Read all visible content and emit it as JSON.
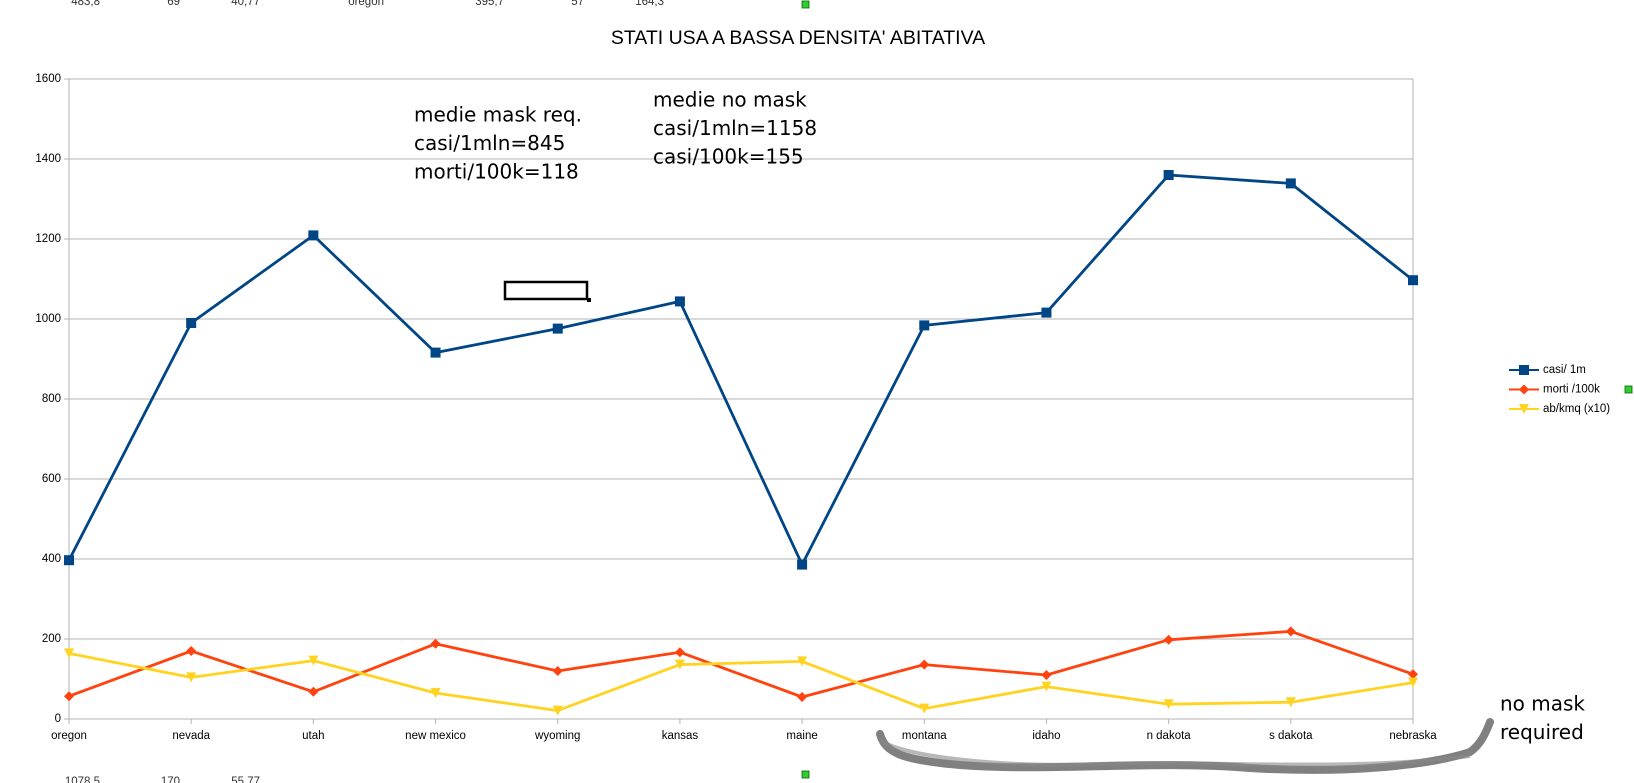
{
  "chart_data": {
    "type": "line",
    "title": "STATI USA A BASSA DENSITA' ABITATIVA",
    "categories": [
      "oregon",
      "nevada",
      "utah",
      "new mexico",
      "wyoming",
      "kansas",
      "maine",
      "montana",
      "idaho",
      "n dakota",
      "s dakota",
      "nebraska"
    ],
    "series": [
      {
        "name": "casi/ 1m",
        "color": "#004586",
        "marker": "square",
        "values": [
          397,
          990,
          1209,
          916,
          976,
          1044,
          386,
          984,
          1016,
          1360,
          1339,
          1097
        ]
      },
      {
        "name": "morti /100k",
        "color": "#ff420e",
        "marker": "diamond",
        "values": [
          57,
          170,
          68,
          188,
          120,
          167,
          55,
          136,
          110,
          198,
          219,
          112
        ]
      },
      {
        "name": "ab/kmq (x10)",
        "color": "#ffd320",
        "marker": "triangle-down",
        "values": [
          164,
          104,
          146,
          65,
          21,
          136,
          144,
          26,
          81,
          37,
          42,
          91
        ]
      }
    ],
    "ylim": [
      0,
      1600
    ],
    "yticks": [
      0,
      200,
      400,
      600,
      800,
      1000,
      1200,
      1400,
      1600
    ],
    "grid": true,
    "legend": "right",
    "annotations": [
      [
        "medie mask req.",
        "casi/1mln=845",
        "morti/100k=118"
      ],
      [
        "medie no mask",
        "casi/1mln=1158",
        "casi/100k=155"
      ],
      [
        "no mask",
        "required"
      ]
    ]
  },
  "sheet_fragments": {
    "top": [
      "483,8",
      "69",
      "40,77",
      "oregon",
      "395,7",
      "57",
      "164,3"
    ],
    "bottom": [
      "1078,5",
      "170",
      "55,77"
    ]
  }
}
